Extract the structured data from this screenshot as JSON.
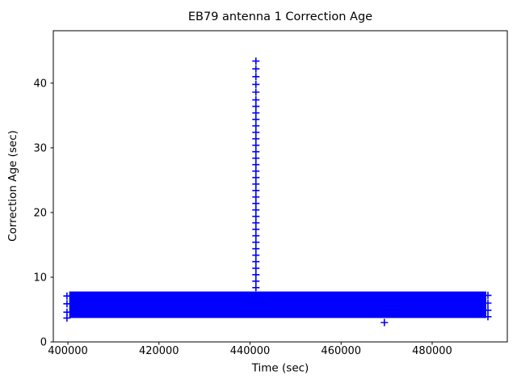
{
  "chart_data": {
    "type": "scatter",
    "title": "EB79 antenna 1 Correction Age",
    "xlabel": "Time (sec)",
    "ylabel": "Correction Age (sec)",
    "marker": "+",
    "marker_color": "#0000ff",
    "background": "#ffffff",
    "grid": false,
    "legend": null,
    "xlim": [
      396800,
      496500
    ],
    "ylim": [
      0,
      48.1
    ],
    "xticks": [
      400000,
      420000,
      440000,
      460000,
      480000
    ],
    "yticks": [
      0,
      10,
      20,
      30,
      40
    ],
    "series": [
      {
        "name": "dense_band",
        "kind": "band",
        "note": "thousands of overlapping + markers forming a solid block",
        "x_start": 400300,
        "x_end": 491900,
        "y_min": 3.7,
        "y_max": 7.8
      },
      {
        "name": "band_left_edge_markers",
        "kind": "points",
        "x": 399800,
        "y_values": [
          7.1,
          5.9,
          4.6,
          3.7
        ]
      },
      {
        "name": "band_right_edge_markers",
        "kind": "points",
        "x": 492250,
        "y_values": [
          7.2,
          6.0,
          4.9,
          3.9
        ]
      },
      {
        "name": "spike",
        "kind": "vertical_spike",
        "x": 441300,
        "y_values": [
          8.4,
          9.4,
          10.4,
          11.4,
          12.4,
          13.4,
          14.4,
          15.4,
          16.4,
          17.4,
          18.4,
          19.4,
          20.4,
          21.4,
          22.4,
          23.4,
          24.4,
          25.4,
          26.4,
          27.4,
          28.4,
          29.4,
          30.4,
          31.4,
          32.4,
          33.4,
          34.4,
          35.4,
          36.4,
          37.4,
          38.6,
          39.8,
          41.0,
          42.2,
          43.4
        ]
      },
      {
        "name": "isolated_point",
        "kind": "point",
        "x": 469500,
        "y": 3.0
      }
    ]
  }
}
